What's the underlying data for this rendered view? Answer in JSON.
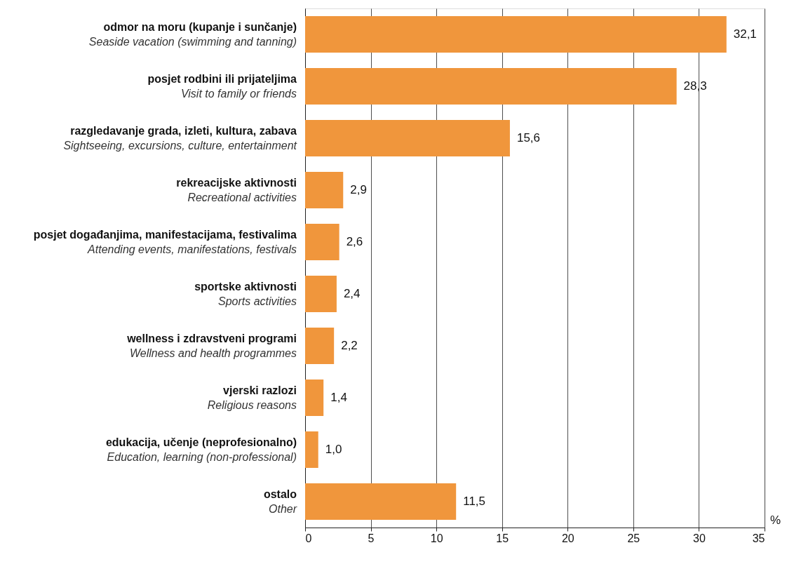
{
  "chart_data": {
    "type": "bar",
    "orientation": "horizontal",
    "categories": [
      "odmor na moru (kupanje i sunčanje)\nSeaside vacation (swimming and tanning)",
      "posjet rodbini ili prijateljima\nVisit to family or friends",
      "razgledavanje grada, izleti, kultura, zabava\nSightseeing, excursions, culture, entertainment",
      "rekreacijske aktivnosti\nRecreational activities",
      "posjet događanjima, manifestacijama, festivalima\nAttending events, manifestations, festivals",
      "sportske aktivnosti\nSports activities",
      "wellness i zdravstveni programi\nWellness and health programmes",
      "vjerski razlozi\nReligious reasons",
      "edukacija, učenje (neprofesionalno)\nEducation, learning (non-professional)",
      "ostalo\nOther"
    ],
    "values": [
      32.1,
      28.3,
      15.6,
      2.9,
      2.6,
      2.4,
      2.2,
      1.4,
      1.0,
      11.5
    ],
    "value_labels": [
      "32,1",
      "28,3",
      "15,6",
      "2,9",
      "2,6",
      "2,4",
      "2,2",
      "1,4",
      "1,0",
      "11,5"
    ],
    "color": "#f0963c",
    "xlabel": "%",
    "xlim": [
      0,
      35
    ],
    "xticks": [
      0,
      5,
      10,
      15,
      20,
      25,
      30,
      35
    ],
    "grid": "x"
  }
}
